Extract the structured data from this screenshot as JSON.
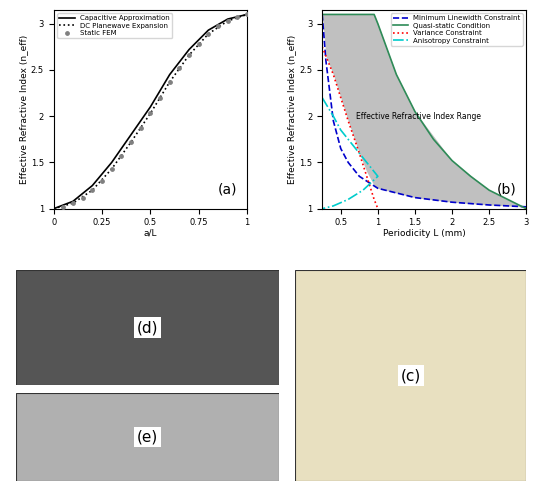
{
  "chart_data": [
    {
      "type": "line",
      "panel_label": "(a)",
      "x_label": "a/L",
      "y_label": "Effective Refractive Index (n_eff)",
      "xlim": [
        0,
        1
      ],
      "xticks": [
        0,
        0.25,
        0.5,
        0.75,
        1
      ],
      "ylim": [
        1,
        3.15
      ],
      "yticks": [
        1,
        1.5,
        2,
        2.5,
        3
      ],
      "legend": "upper left",
      "series": [
        {
          "name": "Capacitive Approximation",
          "type": "line",
          "color": "#000000",
          "line_style": "solid",
          "x": [
            0,
            0.1,
            0.2,
            0.3,
            0.4,
            0.5,
            0.6,
            0.7,
            0.8,
            0.9,
            1.0
          ],
          "values": [
            1.0,
            1.08,
            1.25,
            1.5,
            1.8,
            2.1,
            2.45,
            2.72,
            2.93,
            3.05,
            3.1
          ]
        },
        {
          "name": "DC Planewave Expansion",
          "type": "line",
          "color": "#000000",
          "line_style": "dotted",
          "x": [
            0,
            0.1,
            0.2,
            0.3,
            0.4,
            0.5,
            0.6,
            0.7,
            0.8,
            0.9,
            1.0
          ],
          "values": [
            1.0,
            1.06,
            1.2,
            1.43,
            1.72,
            2.03,
            2.37,
            2.66,
            2.89,
            3.03,
            3.1
          ]
        },
        {
          "name": "Static FEM",
          "type": "scatter",
          "color": "#808080",
          "marker": "o",
          "x": [
            0.05,
            0.1,
            0.15,
            0.2,
            0.25,
            0.3,
            0.35,
            0.4,
            0.45,
            0.5,
            0.55,
            0.6,
            0.65,
            0.7,
            0.75,
            0.8,
            0.85,
            0.9,
            0.95,
            1.0
          ],
          "values": [
            1.02,
            1.06,
            1.12,
            1.2,
            1.3,
            1.43,
            1.57,
            1.72,
            1.87,
            2.03,
            2.2,
            2.37,
            2.52,
            2.66,
            2.78,
            2.89,
            2.97,
            3.03,
            3.07,
            3.1
          ]
        }
      ]
    },
    {
      "type": "line",
      "panel_label": "(b)",
      "x_label": "Periodicity L (mm)",
      "y_label": "Effective Refractive Index (n_eff)",
      "xlim": [
        0.25,
        3
      ],
      "xticks": [
        0.5,
        1,
        1.5,
        2,
        2.5,
        3
      ],
      "ylim": [
        1,
        3.15
      ],
      "yticks": [
        1,
        1.5,
        2,
        2.5,
        3
      ],
      "legend": "upper right",
      "region": {
        "label": "Effective Refractive Index Range",
        "color": "#c0c0c0",
        "x": [
          0.25,
          0.3,
          0.4,
          0.5,
          0.6,
          0.75,
          0.85,
          0.95,
          1.0,
          1.25,
          1.5,
          2.0,
          2.5,
          3.0
        ],
        "lower": [
          3.1,
          2.65,
          2.45,
          2.2,
          1.95,
          1.6,
          1.4,
          1.25,
          1.22,
          1.17,
          1.12,
          1.07,
          1.04,
          1.02
        ],
        "upper": [
          3.1,
          3.1,
          3.1,
          3.1,
          3.1,
          3.1,
          3.1,
          3.1,
          3.0,
          2.45,
          2.05,
          1.52,
          1.2,
          1.0
        ]
      },
      "series": [
        {
          "name": "Minimum Linewidth Constraint",
          "color": "#0000cc",
          "line_style": "dashed",
          "x": [
            0.25,
            0.3,
            0.4,
            0.5,
            0.6,
            0.75,
            1.0,
            1.5,
            2.0,
            2.5,
            3.0
          ],
          "values": [
            3.1,
            2.6,
            1.95,
            1.65,
            1.5,
            1.35,
            1.22,
            1.12,
            1.07,
            1.04,
            1.02
          ]
        },
        {
          "name": "Quasi-static Condition",
          "color": "#2e8b57",
          "line_style": "solid",
          "x": [
            0.25,
            0.95,
            1.0,
            1.25,
            1.5,
            1.75,
            2.0,
            2.25,
            2.5,
            2.75,
            3.0
          ],
          "values": [
            3.1,
            3.1,
            3.0,
            2.45,
            2.05,
            1.75,
            1.52,
            1.35,
            1.2,
            1.1,
            1.0
          ]
        },
        {
          "name": "Variance Constraint",
          "color": "#ff0000",
          "line_style": "dotted",
          "x": [
            0.25,
            0.4,
            0.5,
            0.6,
            0.75,
            0.85,
            0.95,
            1.0
          ],
          "values": [
            2.75,
            2.45,
            2.2,
            1.95,
            1.6,
            1.35,
            1.1,
            1.0
          ]
        },
        {
          "name": "Anisotropy Constraint",
          "color": "#00cccc",
          "line_style": "dashdot",
          "x": [
            0.25,
            0.4,
            0.5,
            0.6,
            0.75,
            0.9,
            1.0,
            0.8,
            0.6,
            0.4,
            0.25
          ],
          "values": [
            2.2,
            2.0,
            1.85,
            1.75,
            1.6,
            1.45,
            1.35,
            1.2,
            1.1,
            1.03,
            1.0
          ]
        }
      ]
    }
  ],
  "images": [
    {
      "label": "(d)"
    },
    {
      "label": "(e)"
    },
    {
      "label": "(c)"
    }
  ]
}
